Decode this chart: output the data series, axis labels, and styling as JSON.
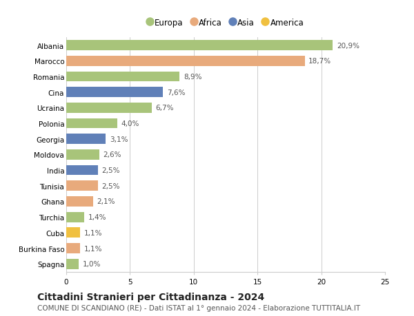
{
  "categories": [
    "Albania",
    "Marocco",
    "Romania",
    "Cina",
    "Ucraina",
    "Polonia",
    "Georgia",
    "Moldova",
    "India",
    "Tunisia",
    "Ghana",
    "Turchia",
    "Cuba",
    "Burkina Faso",
    "Spagna"
  ],
  "values": [
    20.9,
    18.7,
    8.9,
    7.6,
    6.7,
    4.0,
    3.1,
    2.6,
    2.5,
    2.5,
    2.1,
    1.4,
    1.1,
    1.1,
    1.0
  ],
  "labels": [
    "20,9%",
    "18,7%",
    "8,9%",
    "7,6%",
    "6,7%",
    "4,0%",
    "3,1%",
    "2,6%",
    "2,5%",
    "2,5%",
    "2,1%",
    "1,4%",
    "1,1%",
    "1,1%",
    "1,0%"
  ],
  "continents": [
    "Europa",
    "Africa",
    "Europa",
    "Asia",
    "Europa",
    "Europa",
    "Asia",
    "Europa",
    "Asia",
    "Africa",
    "Africa",
    "Europa",
    "America",
    "Africa",
    "Europa"
  ],
  "continent_colors": {
    "Europa": "#a8c47a",
    "Africa": "#e8aa7c",
    "Asia": "#6080b8",
    "America": "#f0c040"
  },
  "legend_order": [
    "Europa",
    "Africa",
    "Asia",
    "America"
  ],
  "title": "Cittadini Stranieri per Cittadinanza - 2024",
  "subtitle": "COMUNE DI SCANDIANO (RE) - Dati ISTAT al 1° gennaio 2024 - Elaborazione TUTTITALIA.IT",
  "xlim": [
    0,
    25
  ],
  "xticks": [
    0,
    5,
    10,
    15,
    20,
    25
  ],
  "bg_color": "#ffffff",
  "grid_color": "#cccccc",
  "bar_height": 0.65,
  "label_fontsize": 7.5,
  "title_fontsize": 10,
  "subtitle_fontsize": 7.5,
  "tick_fontsize": 7.5,
  "legend_fontsize": 8.5
}
